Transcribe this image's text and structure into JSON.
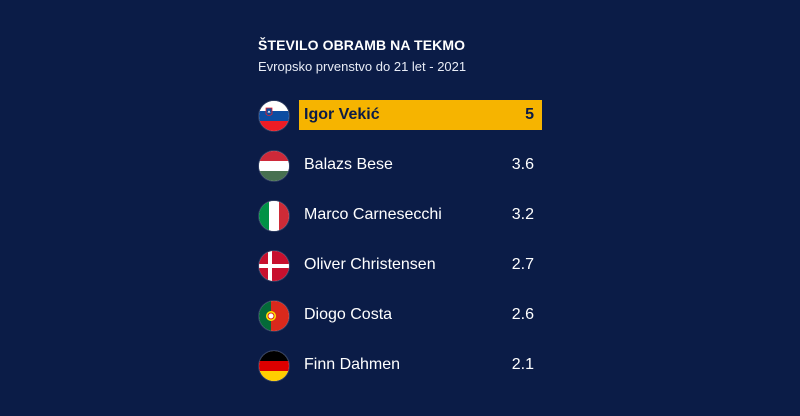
{
  "title": "ŠTEVILO OBRAMB NA TEKMO",
  "subtitle": "Evropsko prvenstvo do 21 let - 2021",
  "accent_color": "#f6b400",
  "background_color": "#0b1c47",
  "players": [
    {
      "name": "Igor Vekić",
      "value": "5",
      "flag": "slovenia-flag-icon",
      "highlight": true
    },
    {
      "name": "Balazs Bese",
      "value": "3.6",
      "flag": "hungary-flag-icon",
      "highlight": false
    },
    {
      "name": "Marco Carnesecchi",
      "value": "3.2",
      "flag": "italy-flag-icon",
      "highlight": false
    },
    {
      "name": "Oliver Christensen",
      "value": "2.7",
      "flag": "denmark-flag-icon",
      "highlight": false
    },
    {
      "name": "Diogo Costa",
      "value": "2.6",
      "flag": "portugal-flag-icon",
      "highlight": false
    },
    {
      "name": "Finn Dahmen",
      "value": "2.1",
      "flag": "germany-flag-icon",
      "highlight": false
    }
  ]
}
